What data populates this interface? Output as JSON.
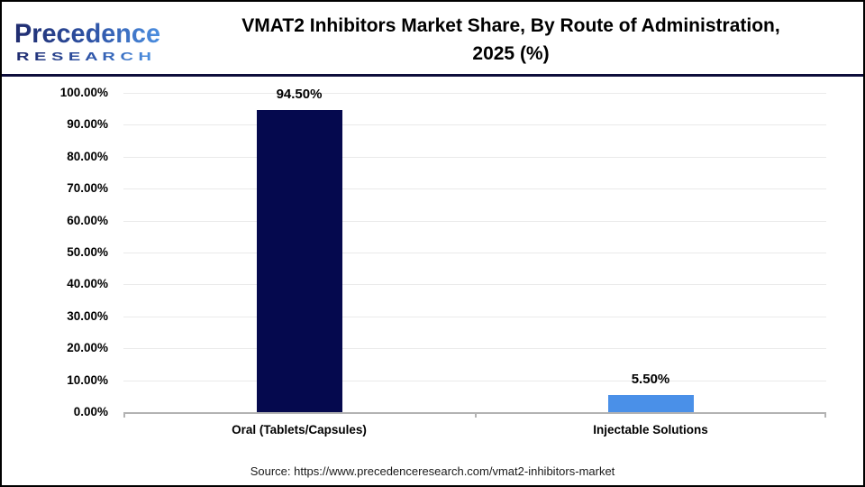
{
  "header": {
    "logo": {
      "brand": "Precedence",
      "sub_brand": "R E S E A R C H",
      "brand_color_dark": "#1f2b6e",
      "brand_color_light": "#4c8fe0"
    },
    "title_lines": [
      "VMAT2 Inhibitors Market Share, By Route of Administration,",
      "2025 (%)"
    ]
  },
  "chart_data": {
    "type": "bar",
    "title": "VMAT2 Inhibitors Market Share, By Route of Administration, 2025 (%)",
    "categories": [
      "Oral (Tablets/Capsules)",
      "Injectable Solutions"
    ],
    "values": [
      94.5,
      5.5
    ],
    "value_labels": [
      "94.50%",
      "5.50%"
    ],
    "bar_colors": [
      "#05094e",
      "#4a90e8"
    ],
    "xlabel": "",
    "ylabel": "",
    "ylim": [
      0,
      100
    ],
    "y_ticks": [
      0,
      10,
      20,
      30,
      40,
      50,
      60,
      70,
      80,
      90,
      100
    ],
    "y_tick_labels": [
      "0.00%",
      "10.00%",
      "20.00%",
      "30.00%",
      "40.00%",
      "50.00%",
      "60.00%",
      "70.00%",
      "80.00%",
      "90.00%",
      "100.00%"
    ],
    "grid": "horizontal",
    "legend_position": "none",
    "gridline_color": "#eaeaea",
    "axis_color": "#b3b3b3"
  },
  "footer": {
    "source": "Source: https://www.precedenceresearch.com/vmat2-inhibitors-market"
  }
}
